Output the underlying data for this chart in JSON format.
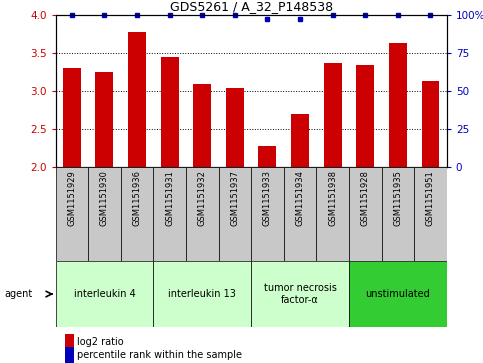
{
  "title": "GDS5261 / A_32_P148538",
  "samples": [
    "GSM1151929",
    "GSM1151930",
    "GSM1151936",
    "GSM1151931",
    "GSM1151932",
    "GSM1151937",
    "GSM1151933",
    "GSM1151934",
    "GSM1151938",
    "GSM1151928",
    "GSM1151935",
    "GSM1151951"
  ],
  "log2_values": [
    3.3,
    3.25,
    3.77,
    3.44,
    3.09,
    3.03,
    2.28,
    2.7,
    3.37,
    3.34,
    3.63,
    3.13
  ],
  "percentile_values": [
    100,
    100,
    100,
    100,
    100,
    100,
    97,
    97,
    100,
    100,
    100,
    100
  ],
  "ylim_left": [
    2.0,
    4.0
  ],
  "ylim_right": [
    0,
    100
  ],
  "yticks_left": [
    2.0,
    2.5,
    3.0,
    3.5,
    4.0
  ],
  "yticks_right": [
    0,
    25,
    50,
    75,
    100
  ],
  "ytick_labels_right": [
    "0",
    "25",
    "50",
    "75",
    "100%"
  ],
  "bar_color": "#cc0000",
  "dot_color": "#0000bb",
  "bar_width": 0.55,
  "groups": [
    {
      "label": "interleukin 4",
      "start": 0,
      "end": 3,
      "color": "#ccffcc"
    },
    {
      "label": "interleukin 13",
      "start": 3,
      "end": 6,
      "color": "#ccffcc"
    },
    {
      "label": "tumor necrosis\nfactor-α",
      "start": 6,
      "end": 9,
      "color": "#ccffcc"
    },
    {
      "label": "unstimulated",
      "start": 9,
      "end": 12,
      "color": "#33cc33"
    }
  ],
  "agent_label": "agent",
  "legend_log2": "log2 ratio",
  "legend_pct": "percentile rank within the sample",
  "sample_box_color": "#c8c8c8",
  "xlabel_color": "#cc0000",
  "ylabel_right_color": "#0000bb"
}
